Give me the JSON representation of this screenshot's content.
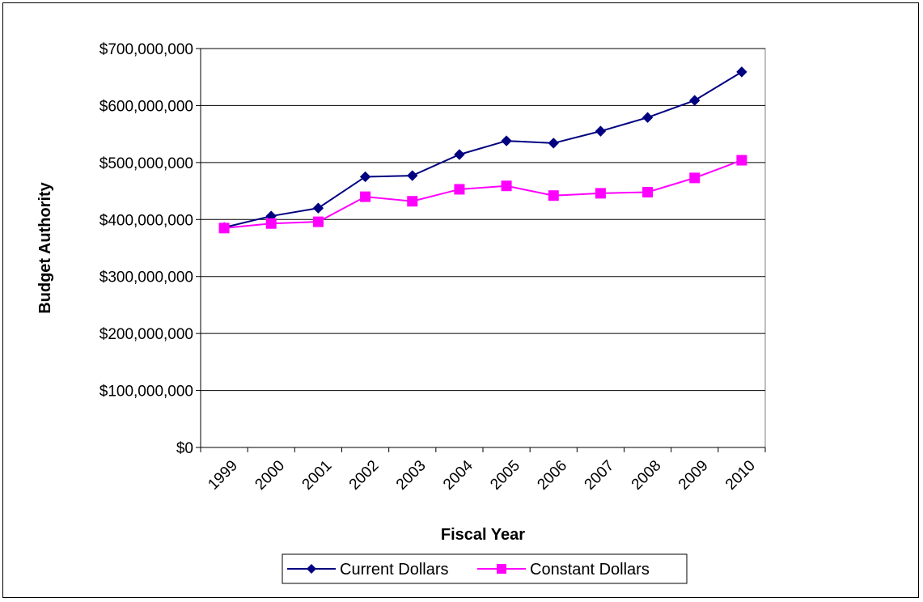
{
  "chart_data": {
    "type": "line",
    "title": "",
    "xlabel": "Fiscal Year",
    "ylabel": "Budget Authority",
    "categories": [
      "1999",
      "2000",
      "2001",
      "2002",
      "2003",
      "2004",
      "2005",
      "2006",
      "2007",
      "2008",
      "2009",
      "2010"
    ],
    "ylim": [
      0,
      700000000
    ],
    "yticks": [
      0,
      100000000,
      200000000,
      300000000,
      400000000,
      500000000,
      600000000,
      700000000
    ],
    "ytick_labels": [
      "$0",
      "$100,000,000",
      "$200,000,000",
      "$300,000,000",
      "$400,000,000",
      "$500,000,000",
      "$600,000,000",
      "$700,000,000"
    ],
    "grid": "horizontal",
    "legend_position": "bottom",
    "series": [
      {
        "name": "Current Dollars",
        "color": "#000080",
        "marker": "diamond",
        "values": [
          386000000,
          406000000,
          420000000,
          475000000,
          477000000,
          514000000,
          538000000,
          534000000,
          555000000,
          579000000,
          609000000,
          659000000
        ]
      },
      {
        "name": "Constant Dollars",
        "color": "#FF00FF",
        "marker": "square",
        "values": [
          385000000,
          393000000,
          396000000,
          440000000,
          432000000,
          453000000,
          459000000,
          442000000,
          446000000,
          448000000,
          473000000,
          504000000
        ]
      }
    ]
  }
}
